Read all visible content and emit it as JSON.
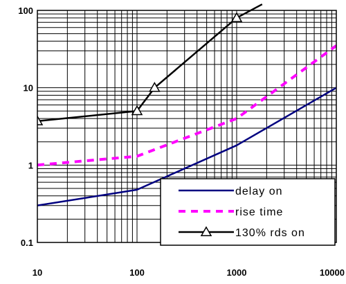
{
  "chart_data": {
    "type": "line",
    "x_scale": "log",
    "y_scale": "log",
    "xlim": [
      10,
      10000
    ],
    "ylim": [
      0.1,
      100
    ],
    "grid": true,
    "legend_position": "bottom-right",
    "x_ticks": [
      {
        "value": 10,
        "label": "10"
      },
      {
        "value": 100,
        "label": "100"
      },
      {
        "value": 1000,
        "label": "1000"
      },
      {
        "value": 10000,
        "label": "10000"
      }
    ],
    "y_ticks": [
      {
        "value": 0.1,
        "label": "0.1"
      },
      {
        "value": 1,
        "label": "1"
      },
      {
        "value": 10,
        "label": "10"
      },
      {
        "value": 100,
        "label": "100"
      }
    ],
    "series": [
      {
        "name": "delay on",
        "color": "#000080",
        "dash": "solid",
        "marker": "none",
        "points": [
          [
            10,
            0.3
          ],
          [
            100,
            0.48
          ],
          [
            1000,
            1.8
          ],
          [
            10000,
            10
          ]
        ]
      },
      {
        "name": "rise time",
        "color": "#ff00ff",
        "dash": "dashed",
        "marker": "none",
        "points": [
          [
            10,
            1.0
          ],
          [
            100,
            1.3
          ],
          [
            1000,
            4.0
          ],
          [
            10000,
            35
          ]
        ]
      },
      {
        "name": "130% rds on",
        "color": "#000000",
        "dash": "solid",
        "marker": "triangle",
        "points": [
          [
            10,
            3.7
          ],
          [
            100,
            5.0
          ],
          [
            150,
            10.0
          ],
          [
            1000,
            80
          ],
          [
            1800,
            120
          ]
        ],
        "marker_points": [
          [
            10,
            3.7
          ],
          [
            100,
            5.0
          ],
          [
            150,
            10.0
          ],
          [
            1000,
            80
          ]
        ]
      }
    ]
  }
}
